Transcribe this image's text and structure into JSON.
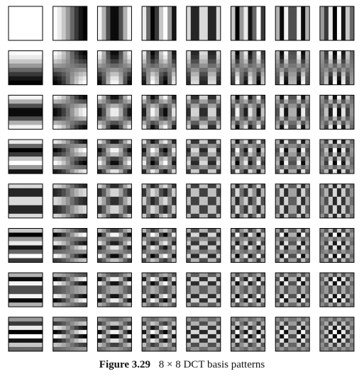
{
  "figure": {
    "label": "Figure 3.29",
    "caption": "8 × 8 DCT basis patterns"
  },
  "grid": {
    "rows": 8,
    "cols": 8,
    "cell_samples": 8
  },
  "colors": {
    "background": "#ffffff",
    "border": "#000000",
    "caption_text": "#111111"
  }
}
